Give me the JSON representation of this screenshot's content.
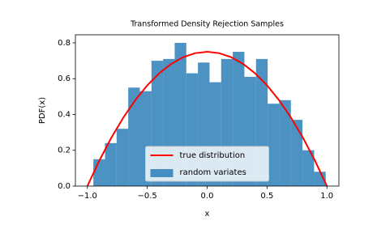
{
  "chart_data": {
    "type": "histogram",
    "title": "Transformed Density Rejection Samples",
    "xlabel": "x",
    "ylabel": "PDF(x)",
    "xlim": [
      -1.1,
      1.1
    ],
    "ylim": [
      0,
      0.845
    ],
    "xticks": [
      {
        "value": -1.0,
        "label": "−1.0"
      },
      {
        "value": -0.5,
        "label": "−0.5"
      },
      {
        "value": 0,
        "label": "0.0"
      },
      {
        "value": 0.5,
        "label": "0.5"
      },
      {
        "value": 1.0,
        "label": "1.0"
      }
    ],
    "yticks": [
      {
        "value": 0,
        "label": "0.0"
      },
      0.2,
      0.4,
      0.6,
      0.8
    ],
    "legend": "lower center",
    "series": [
      {
        "name": "true distribution",
        "type": "line",
        "color": "red",
        "x": [
          -1.0,
          -0.9,
          -0.8,
          -0.7,
          -0.6,
          -0.5,
          -0.4,
          -0.3,
          -0.2,
          -0.1,
          0,
          0.1,
          0.2,
          0.3,
          0.4,
          0.5,
          0.6,
          0.7,
          0.8,
          0.9,
          1.0
        ],
        "values": [
          0,
          0.1425,
          0.27,
          0.3825,
          0.48,
          0.5625,
          0.63,
          0.6825,
          0.72,
          0.7425,
          0.75,
          0.7425,
          0.72,
          0.6825,
          0.63,
          0.5625,
          0.48,
          0.3825,
          0.27,
          0.1425,
          0
        ]
      },
      {
        "name": "random variates",
        "type": "histogram",
        "color": "#1f77b4",
        "alpha": 0.8,
        "bins": [
          -0.95,
          -0.853,
          -0.756,
          -0.659,
          -0.562,
          -0.465,
          -0.368,
          -0.271,
          -0.174,
          -0.077,
          0.02,
          0.117,
          0.214,
          0.311,
          0.408,
          0.505,
          0.602,
          0.699,
          0.796,
          0.893,
          0.99
        ],
        "values": [
          0.15,
          0.24,
          0.32,
          0.55,
          0.53,
          0.7,
          0.71,
          0.8,
          0.63,
          0.69,
          0.58,
          0.71,
          0.75,
          0.61,
          0.71,
          0.46,
          0.48,
          0.37,
          0.2,
          0.08
        ]
      }
    ]
  }
}
